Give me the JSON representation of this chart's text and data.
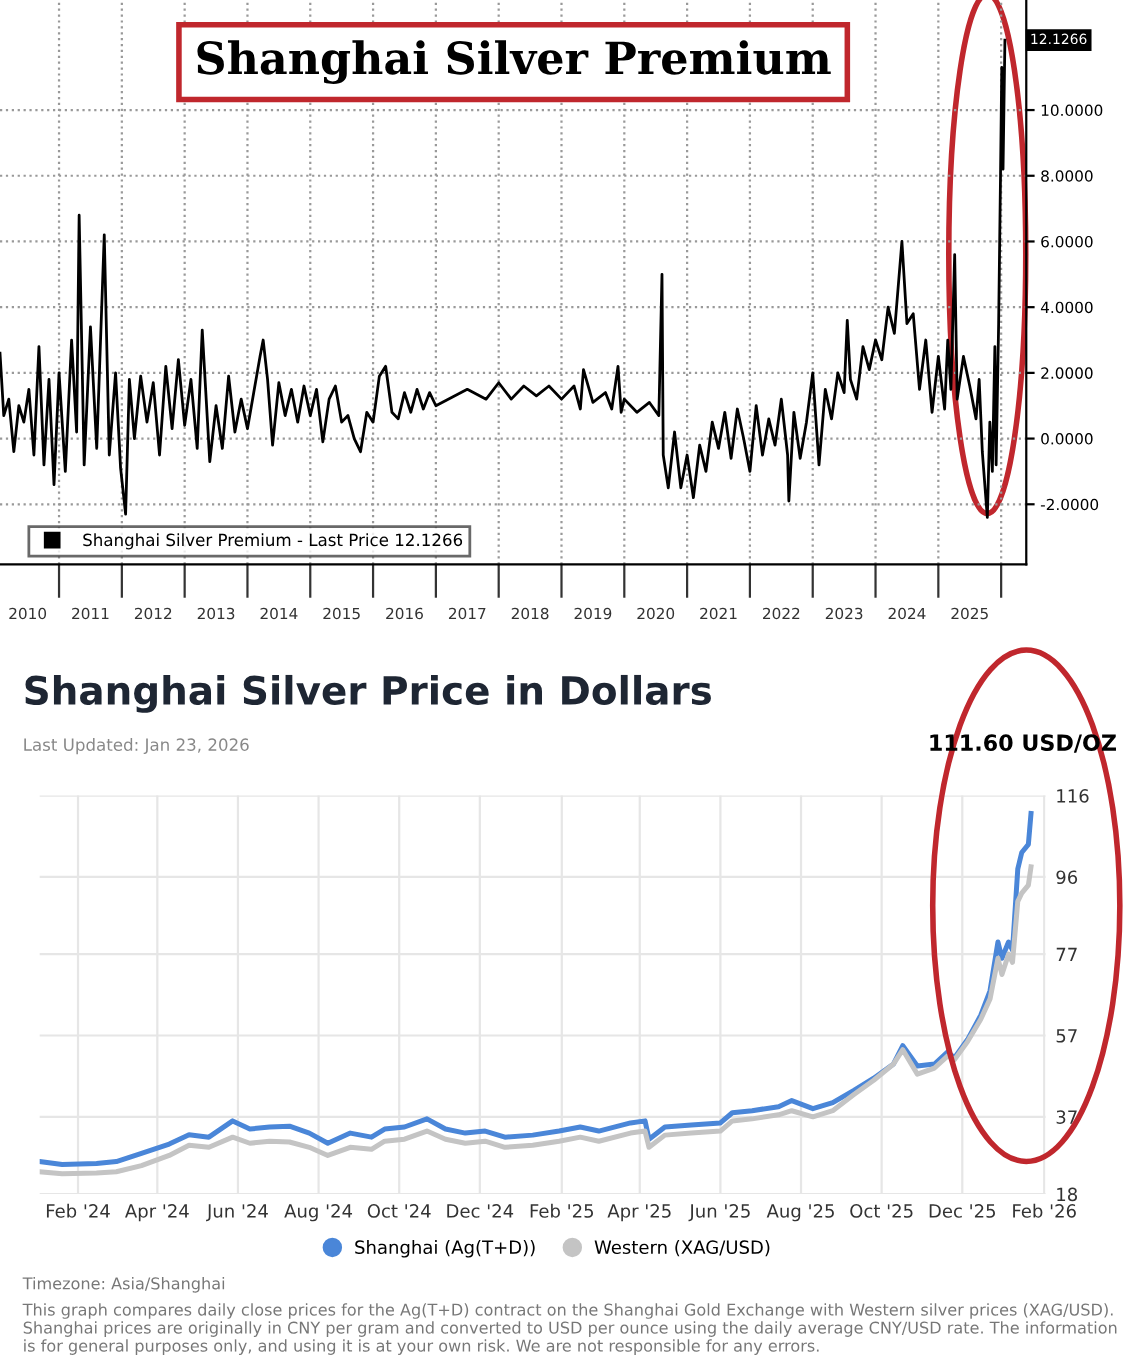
{
  "chart_data": [
    {
      "type": "line",
      "title": "Shanghai Silver Premium",
      "series": [
        {
          "name": "Shanghai Silver Premium - Last Price 12.1266",
          "color": "#000000",
          "x": [
            2010.06,
            2010.12,
            2010.2,
            2010.28,
            2010.36,
            2010.44,
            2010.52,
            2010.6,
            2010.68,
            2010.76,
            2010.84,
            2010.92,
            2011.0,
            2011.1,
            2011.2,
            2011.28,
            2011.32,
            2011.4,
            2011.5,
            2011.6,
            2011.72,
            2011.8,
            2011.9,
            2011.98,
            2012.06,
            2012.12,
            2012.2,
            2012.3,
            2012.4,
            2012.5,
            2012.6,
            2012.7,
            2012.8,
            2012.9,
            2013.0,
            2013.1,
            2013.2,
            2013.28,
            2013.4,
            2013.5,
            2013.6,
            2013.7,
            2013.8,
            2013.9,
            2014.0,
            2014.1,
            2014.2,
            2014.25,
            2014.32,
            2014.4,
            2014.5,
            2014.6,
            2014.7,
            2014.8,
            2014.9,
            2015.0,
            2015.1,
            2015.2,
            2015.3,
            2015.4,
            2015.5,
            2015.6,
            2015.7,
            2015.8,
            2015.9,
            2016.0,
            2016.1,
            2016.2,
            2016.3,
            2016.4,
            2016.5,
            2016.6,
            2016.7,
            2016.8,
            2016.9,
            2017.0,
            2017.5,
            2017.8,
            2018.0,
            2018.2,
            2018.4,
            2018.6,
            2018.8,
            2019.0,
            2019.2,
            2019.3,
            2019.35,
            2019.5,
            2019.7,
            2019.8,
            2019.9,
            2019.95,
            2020.0,
            2020.2,
            2020.4,
            2020.55,
            2020.6,
            2020.62,
            2020.7,
            2020.8,
            2020.9,
            2021.0,
            2021.1,
            2021.2,
            2021.3,
            2021.4,
            2021.5,
            2021.6,
            2021.7,
            2021.8,
            2021.9,
            2022.0,
            2022.1,
            2022.2,
            2022.3,
            2022.4,
            2022.5,
            2022.6,
            2022.62,
            2022.7,
            2022.8,
            2022.9,
            2023.0,
            2023.1,
            2023.2,
            2023.3,
            2023.4,
            2023.5,
            2023.55,
            2023.6,
            2023.7,
            2023.8,
            2023.9,
            2024.0,
            2024.1,
            2024.2,
            2024.3,
            2024.42,
            2024.5,
            2024.6,
            2024.7,
            2024.8,
            2024.9,
            2025.0,
            2025.1,
            2025.15,
            2025.2,
            2025.26,
            2025.3,
            2025.4,
            2025.5,
            2025.6,
            2025.65,
            2025.7,
            2025.78,
            2025.82,
            2025.86,
            2025.9,
            2025.92,
            2025.96,
            2025.99,
            2026.01,
            2026.03,
            2026.06
          ],
          "values": [
            2.6,
            0.7,
            1.2,
            -0.4,
            1.0,
            0.5,
            1.5,
            -0.5,
            2.8,
            -0.8,
            1.8,
            -1.4,
            2.0,
            -1.0,
            3.0,
            0.2,
            6.8,
            -0.8,
            3.4,
            -0.3,
            6.2,
            -0.5,
            2.0,
            -0.9,
            -2.3,
            1.8,
            0.0,
            1.9,
            0.5,
            1.7,
            -0.5,
            2.2,
            0.3,
            2.4,
            0.4,
            1.8,
            -0.3,
            3.3,
            -0.7,
            1.0,
            -0.3,
            1.9,
            0.2,
            1.2,
            0.3,
            1.4,
            2.5,
            3.0,
            1.8,
            -0.2,
            1.7,
            0.7,
            1.5,
            0.5,
            1.6,
            0.7,
            1.5,
            -0.1,
            1.2,
            1.6,
            0.5,
            0.7,
            0.0,
            -0.4,
            0.8,
            0.5,
            1.9,
            2.2,
            0.8,
            0.6,
            1.4,
            0.8,
            1.5,
            0.9,
            1.4,
            1.0,
            1.5,
            1.2,
            1.7,
            1.2,
            1.6,
            1.3,
            1.6,
            1.2,
            1.6,
            0.9,
            2.1,
            1.1,
            1.4,
            0.9,
            2.2,
            0.8,
            1.2,
            0.8,
            1.1,
            0.7,
            5.0,
            -0.5,
            -1.5,
            0.2,
            -1.5,
            -0.5,
            -1.8,
            -0.2,
            -1.0,
            0.5,
            -0.3,
            0.8,
            -0.6,
            0.9,
            0.0,
            -1.0,
            1.0,
            -0.5,
            0.6,
            -0.2,
            1.2,
            -0.5,
            -1.9,
            0.8,
            -0.6,
            0.5,
            2.0,
            -0.8,
            1.5,
            0.6,
            2.0,
            1.4,
            3.6,
            1.8,
            1.2,
            2.8,
            2.1,
            3.0,
            2.4,
            4.0,
            3.2,
            6.0,
            3.5,
            3.8,
            1.5,
            3.0,
            0.8,
            2.5,
            0.9,
            3.0,
            1.5,
            5.6,
            1.2,
            2.5,
            1.6,
            0.6,
            1.8,
            -0.4,
            -2.4,
            0.5,
            -1.0,
            2.8,
            -0.8,
            3.5,
            8.0,
            11.3,
            8.2,
            12.13
          ]
        }
      ],
      "xlim": [
        2010.06,
        2026.4
      ],
      "ylim": [
        -3.83,
        13.35
      ],
      "xticks": [
        {
          "value": 2011,
          "label": null
        },
        {
          "value": 2012,
          "label": null
        },
        {
          "value": 2013,
          "label": null
        },
        {
          "value": 2014,
          "label": null
        },
        {
          "value": 2015,
          "label": null
        },
        {
          "value": 2016,
          "label": null
        },
        {
          "value": 2017,
          "label": null
        },
        {
          "value": 2018,
          "label": null
        },
        {
          "value": 2019,
          "label": null
        },
        {
          "value": 2020,
          "label": null
        },
        {
          "value": 2021,
          "label": null
        },
        {
          "value": 2022,
          "label": null
        },
        {
          "value": 2023,
          "label": null
        },
        {
          "value": 2024,
          "label": null
        },
        {
          "value": 2025,
          "label": null
        },
        {
          "value": 2026,
          "label": null
        },
        {
          "value": 2010.5,
          "label": "2010"
        },
        {
          "value": 2011.5,
          "label": "2011"
        },
        {
          "value": 2012.5,
          "label": "2012"
        },
        {
          "value": 2013.5,
          "label": "2013"
        },
        {
          "value": 2014.5,
          "label": "2014"
        },
        {
          "value": 2015.5,
          "label": "2015"
        },
        {
          "value": 2016.5,
          "label": "2016"
        },
        {
          "value": 2017.5,
          "label": "2017"
        },
        {
          "value": 2018.5,
          "label": "2018"
        },
        {
          "value": 2019.5,
          "label": "2019"
        },
        {
          "value": 2020.5,
          "label": "2020"
        },
        {
          "value": 2021.5,
          "label": "2021"
        },
        {
          "value": 2022.5,
          "label": "2022"
        },
        {
          "value": 2023.5,
          "label": "2023"
        },
        {
          "value": 2024.5,
          "label": "2024"
        },
        {
          "value": 2025.5,
          "label": "2025"
        }
      ],
      "yticks": [
        {
          "value": -2,
          "label": "-2.0000"
        },
        {
          "value": 0,
          "label": "0.0000"
        },
        {
          "value": 2,
          "label": "2.0000"
        },
        {
          "value": 4,
          "label": "4.0000"
        },
        {
          "value": 6,
          "label": "6.0000"
        },
        {
          "value": 8,
          "label": "8.0000"
        },
        {
          "value": 10,
          "label": "10.0000"
        }
      ],
      "annotations": [
        {
          "text": "12.1266",
          "x": 2026.06,
          "y": 12.13
        }
      ],
      "grid": true,
      "legend": "bottom left",
      "line_style": "solid",
      "marker": "none"
    },
    {
      "type": "line",
      "title": "Shanghai Silver Price in Dollars",
      "subtitle": "Last Updated: Jan 23, 2026",
      "series": [
        {
          "name": "Shanghai (Ag(T+D))",
          "color": "#4a86d8",
          "x": [
            "2024-01-03",
            "2024-01-20",
            "2024-02-15",
            "2024-03-01",
            "2024-03-20",
            "2024-04-10",
            "2024-04-25",
            "2024-05-10",
            "2024-05-28",
            "2024-06-10",
            "2024-06-25",
            "2024-07-10",
            "2024-07-25",
            "2024-08-08",
            "2024-08-25",
            "2024-09-10",
            "2024-09-20",
            "2024-10-05",
            "2024-10-22",
            "2024-11-05",
            "2024-11-20",
            "2024-12-05",
            "2024-12-20",
            "2025-01-10",
            "2025-01-30",
            "2025-02-15",
            "2025-03-01",
            "2025-03-25",
            "2025-04-05",
            "2025-04-08",
            "2025-04-20",
            "2025-05-10",
            "2025-06-01",
            "2025-06-10",
            "2025-06-25",
            "2025-07-15",
            "2025-07-25",
            "2025-08-10",
            "2025-08-25",
            "2025-09-10",
            "2025-09-25",
            "2025-10-10",
            "2025-10-17",
            "2025-10-28",
            "2025-11-10",
            "2025-11-20",
            "2025-11-25",
            "2025-12-05",
            "2025-12-15",
            "2025-12-22",
            "2025-12-28",
            "2025-12-31",
            "2026-01-05",
            "2026-01-08",
            "2026-01-12",
            "2026-01-15",
            "2026-01-20",
            "2026-01-22"
          ],
          "values": [
            26,
            25.3,
            25.5,
            26,
            28,
            30.3,
            32.6,
            32,
            36,
            34,
            34.5,
            34.7,
            33,
            30.5,
            33,
            32,
            34,
            34.5,
            36.5,
            34,
            33,
            33.5,
            32,
            32.5,
            33.5,
            34.5,
            33.5,
            35.5,
            36,
            31.5,
            34.5,
            35,
            35.5,
            38,
            38.5,
            39.5,
            41,
            39,
            40.5,
            43.5,
            46.5,
            50,
            54.5,
            49.5,
            50,
            53,
            51.5,
            56,
            62,
            68,
            80,
            76,
            80,
            78,
            98,
            102,
            104,
            111.6
          ]
        },
        {
          "name": "Western (XAG/USD)",
          "color": "#c4c4c4",
          "x": [
            "2024-01-03",
            "2024-01-20",
            "2024-02-15",
            "2024-03-01",
            "2024-03-20",
            "2024-04-10",
            "2024-04-25",
            "2024-05-10",
            "2024-05-28",
            "2024-06-10",
            "2024-06-25",
            "2024-07-10",
            "2024-07-25",
            "2024-08-08",
            "2024-08-25",
            "2024-09-10",
            "2024-09-20",
            "2024-10-05",
            "2024-10-22",
            "2024-11-05",
            "2024-11-20",
            "2024-12-05",
            "2024-12-20",
            "2025-01-10",
            "2025-01-30",
            "2025-02-15",
            "2025-03-01",
            "2025-03-25",
            "2025-04-05",
            "2025-04-08",
            "2025-04-20",
            "2025-05-10",
            "2025-06-01",
            "2025-06-10",
            "2025-06-25",
            "2025-07-15",
            "2025-07-25",
            "2025-08-10",
            "2025-08-25",
            "2025-09-10",
            "2025-09-25",
            "2025-10-10",
            "2025-10-17",
            "2025-10-28",
            "2025-11-10",
            "2025-11-20",
            "2025-11-25",
            "2025-12-05",
            "2025-12-15",
            "2025-12-22",
            "2025-12-28",
            "2025-12-31",
            "2026-01-05",
            "2026-01-08",
            "2026-01-12",
            "2026-01-15",
            "2026-01-20",
            "2026-01-22"
          ],
          "values": [
            23.5,
            23,
            23.2,
            23.5,
            25,
            27.5,
            30,
            29.5,
            32,
            30.5,
            31,
            30.8,
            29.5,
            27.5,
            29.5,
            29,
            31,
            31.5,
            33.5,
            31.5,
            30.5,
            31,
            29.5,
            30,
            31,
            32,
            31,
            33,
            33.5,
            29.5,
            32.5,
            33,
            33.5,
            36,
            36.5,
            37.5,
            38.5,
            37,
            38.5,
            42.5,
            46,
            50,
            53.5,
            47.5,
            49,
            52,
            51,
            55.5,
            61,
            66,
            76,
            72,
            77,
            75,
            90,
            92,
            94,
            98.5
          ]
        }
      ],
      "xlim": [
        "2024-01-03",
        "2026-02-02"
      ],
      "ylim": [
        18,
        116
      ],
      "xticks": [
        {
          "value": "2024-02-01",
          "label": "Feb '24"
        },
        {
          "value": "2024-04-01",
          "label": "Apr '24"
        },
        {
          "value": "2024-06-01",
          "label": "Jun '24"
        },
        {
          "value": "2024-08-01",
          "label": "Aug '24"
        },
        {
          "value": "2024-10-01",
          "label": "Oct '24"
        },
        {
          "value": "2024-12-01",
          "label": "Dec '24"
        },
        {
          "value": "2025-02-01",
          "label": "Feb '25"
        },
        {
          "value": "2025-04-01",
          "label": "Apr '25"
        },
        {
          "value": "2025-06-01",
          "label": "Jun '25"
        },
        {
          "value": "2025-08-01",
          "label": "Aug '25"
        },
        {
          "value": "2025-10-01",
          "label": "Oct '25"
        },
        {
          "value": "2025-12-01",
          "label": "Dec '25"
        },
        {
          "value": "2026-02-01",
          "label": "Feb '26"
        }
      ],
      "yticks": [
        18,
        37,
        57,
        77,
        96,
        116
      ],
      "annotations": [
        "111.60 USD/OZ",
        "Timezone: Asia/Shanghai",
        "This graph compares daily close prices for the Ag(T+D) contract on the Shanghai Gold Exchange with Western silver prices (XAG/USD). Shanghai prices are originally in CNY per gram and converted to USD per ounce using the daily average CNY/USD rate. The information is for general purposes only, and using it is at your own risk. We are not responsible for any errors."
      ],
      "grid": true,
      "legend": "bottom",
      "line_style": "solid",
      "marker": "none"
    }
  ]
}
